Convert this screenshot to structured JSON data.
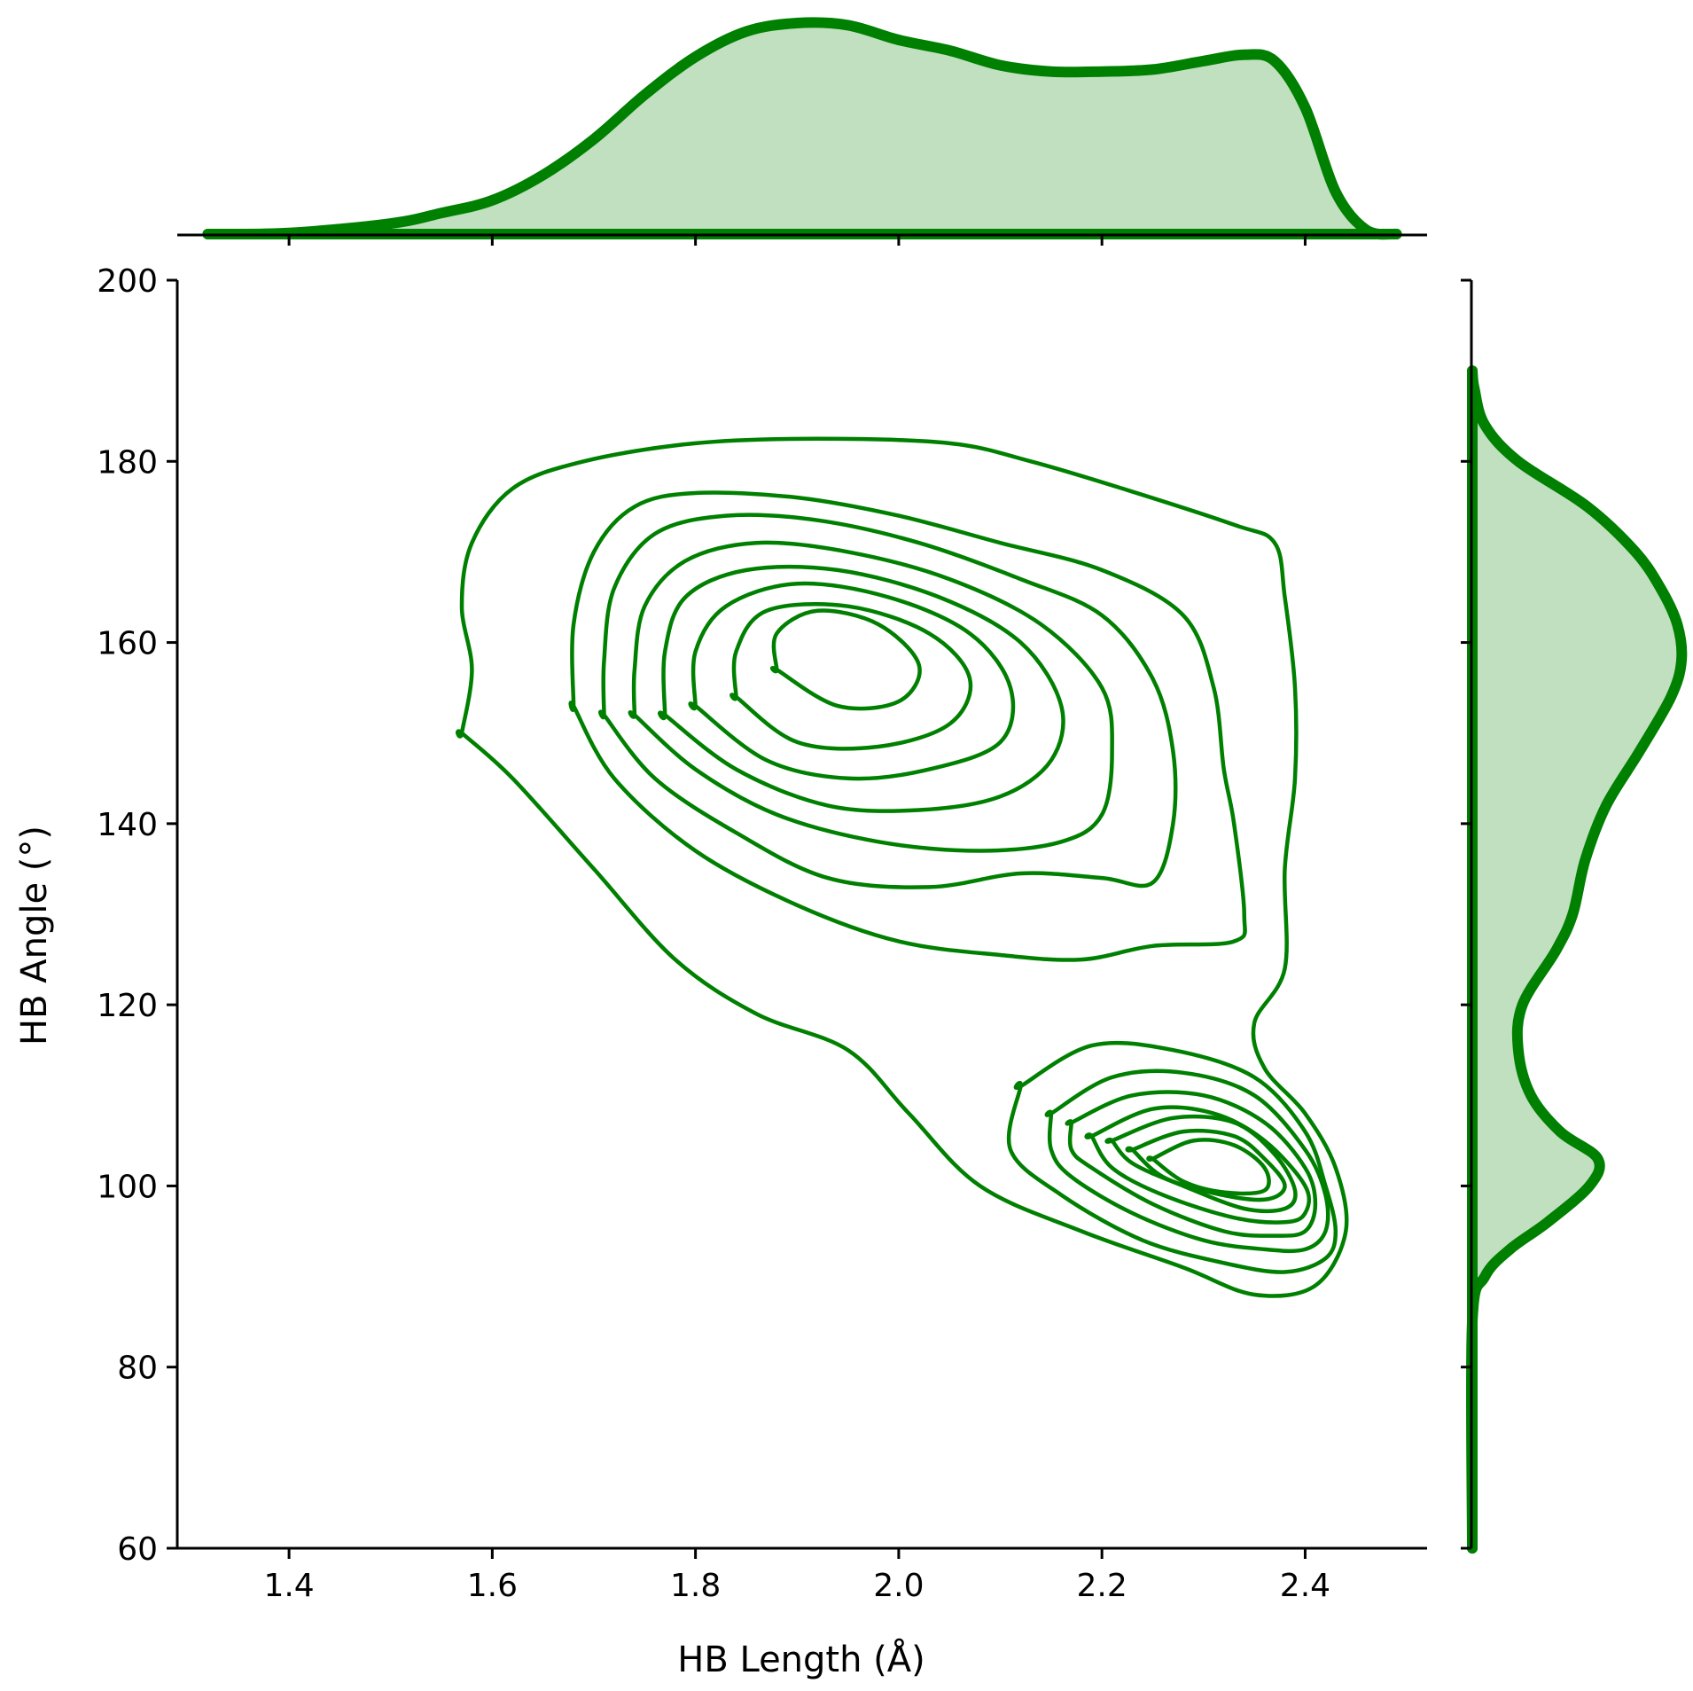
{
  "chart_data": {
    "type": "kde-joint",
    "color": "#008000",
    "fill_color": "#c0e0c0",
    "xlabel": "HB Length (Å)",
    "ylabel": "HB Angle (°)",
    "xlim": [
      1.29,
      2.52
    ],
    "ylim": [
      60,
      200
    ],
    "xticks": [
      "1.4",
      "1.6",
      "1.8",
      "2.0",
      "2.2",
      "2.4"
    ],
    "yticks": [
      "60",
      "80",
      "100",
      "120",
      "140",
      "160",
      "180",
      "200"
    ],
    "grid": false,
    "contours": [
      [
        [
          1.57,
          150
        ],
        [
          1.62,
          145
        ],
        [
          1.7,
          135
        ],
        [
          1.78,
          125
        ],
        [
          1.86,
          119
        ],
        [
          1.95,
          115
        ],
        [
          2.01,
          108
        ],
        [
          2.08,
          100
        ],
        [
          2.18,
          95
        ],
        [
          2.28,
          91
        ],
        [
          2.35,
          88
        ],
        [
          2.41,
          89
        ],
        [
          2.44,
          95
        ],
        [
          2.43,
          102
        ],
        [
          2.4,
          108
        ],
        [
          2.36,
          113
        ],
        [
          2.35,
          118
        ],
        [
          2.38,
          124
        ],
        [
          2.38,
          135
        ],
        [
          2.39,
          145
        ],
        [
          2.39,
          155
        ],
        [
          2.38,
          165
        ],
        [
          2.37,
          171
        ],
        [
          2.33,
          173
        ],
        [
          2.22,
          177
        ],
        [
          2.13,
          180
        ],
        [
          2.05,
          182
        ],
        [
          1.92,
          182.5
        ],
        [
          1.8,
          182
        ],
        [
          1.69,
          180
        ],
        [
          1.62,
          177
        ],
        [
          1.58,
          171
        ],
        [
          1.57,
          164
        ],
        [
          1.58,
          157
        ],
        [
          1.57,
          150
        ]
      ],
      [
        [
          2.12,
          111
        ],
        [
          2.19,
          115.5
        ],
        [
          2.27,
          115
        ],
        [
          2.35,
          112
        ],
        [
          2.4,
          106
        ],
        [
          2.42,
          100
        ],
        [
          2.43,
          95
        ],
        [
          2.42,
          92
        ],
        [
          2.38,
          90.5
        ],
        [
          2.32,
          91.5
        ],
        [
          2.24,
          94
        ],
        [
          2.16,
          99
        ],
        [
          2.11,
          104
        ],
        [
          2.12,
          111
        ]
      ],
      [
        [
          2.15,
          108
        ],
        [
          2.21,
          112
        ],
        [
          2.28,
          112.5
        ],
        [
          2.35,
          110
        ],
        [
          2.4,
          104
        ],
        [
          2.42,
          99
        ],
        [
          2.42,
          95
        ],
        [
          2.4,
          93
        ],
        [
          2.36,
          93
        ],
        [
          2.3,
          94
        ],
        [
          2.23,
          97
        ],
        [
          2.17,
          101
        ],
        [
          2.15,
          104
        ],
        [
          2.15,
          108
        ]
      ],
      [
        [
          2.17,
          107
        ],
        [
          2.23,
          110
        ],
        [
          2.3,
          110
        ],
        [
          2.36,
          107
        ],
        [
          2.4,
          102
        ],
        [
          2.41,
          98
        ],
        [
          2.4,
          95
        ],
        [
          2.37,
          94.5
        ],
        [
          2.32,
          95
        ],
        [
          2.25,
          98
        ],
        [
          2.19,
          102
        ],
        [
          2.17,
          104
        ],
        [
          2.17,
          107
        ]
      ],
      [
        [
          2.19,
          105.5
        ],
        [
          2.25,
          108.5
        ],
        [
          2.31,
          108
        ],
        [
          2.36,
          105
        ],
        [
          2.4,
          100
        ],
        [
          2.4,
          97
        ],
        [
          2.38,
          96
        ],
        [
          2.33,
          96.5
        ],
        [
          2.26,
          99
        ],
        [
          2.21,
          102
        ],
        [
          2.19,
          105.5
        ]
      ],
      [
        [
          2.21,
          105
        ],
        [
          2.27,
          107.5
        ],
        [
          2.33,
          107
        ],
        [
          2.37,
          103.5
        ],
        [
          2.39,
          99.5
        ],
        [
          2.38,
          97.5
        ],
        [
          2.34,
          97.5
        ],
        [
          2.28,
          100
        ],
        [
          2.23,
          102.5
        ],
        [
          2.21,
          105
        ]
      ],
      [
        [
          2.23,
          104
        ],
        [
          2.28,
          106
        ],
        [
          2.33,
          105.5
        ],
        [
          2.36,
          103
        ],
        [
          2.38,
          100
        ],
        [
          2.36,
          98.5
        ],
        [
          2.31,
          99.2
        ],
        [
          2.26,
          101
        ],
        [
          2.23,
          104
        ]
      ],
      [
        [
          2.25,
          103
        ],
        [
          2.29,
          105
        ],
        [
          2.33,
          104.5
        ],
        [
          2.36,
          102
        ],
        [
          2.36,
          99.5
        ],
        [
          2.32,
          99.3
        ],
        [
          2.28,
          100.5
        ],
        [
          2.25,
          103
        ]
      ],
      [
        [
          1.68,
          153
        ],
        [
          1.72,
          145
        ],
        [
          1.8,
          137
        ],
        [
          1.9,
          131
        ],
        [
          2.0,
          127
        ],
        [
          2.1,
          125.5
        ],
        [
          2.18,
          125
        ],
        [
          2.25,
          126.5
        ],
        [
          2.33,
          127
        ],
        [
          2.34,
          130
        ],
        [
          2.33,
          140
        ],
        [
          2.32,
          146
        ],
        [
          2.31,
          155
        ],
        [
          2.28,
          163
        ],
        [
          2.2,
          168
        ],
        [
          2.1,
          171
        ],
        [
          2.0,
          174
        ],
        [
          1.9,
          176
        ],
        [
          1.8,
          176.5
        ],
        [
          1.74,
          175
        ],
        [
          1.7,
          170
        ],
        [
          1.68,
          162
        ],
        [
          1.68,
          153
        ]
      ],
      [
        [
          1.71,
          152
        ],
        [
          1.76,
          145
        ],
        [
          1.84,
          139
        ],
        [
          1.93,
          134
        ],
        [
          2.03,
          133
        ],
        [
          2.12,
          134.5
        ],
        [
          2.2,
          134
        ],
        [
          2.25,
          133.5
        ],
        [
          2.27,
          140
        ],
        [
          2.27,
          148
        ],
        [
          2.25,
          156
        ],
        [
          2.2,
          163
        ],
        [
          2.12,
          167
        ],
        [
          2.02,
          171
        ],
        [
          1.92,
          173.5
        ],
        [
          1.83,
          174
        ],
        [
          1.76,
          172
        ],
        [
          1.72,
          166
        ],
        [
          1.71,
          158
        ],
        [
          1.71,
          152
        ]
      ],
      [
        [
          1.74,
          152
        ],
        [
          1.8,
          146
        ],
        [
          1.88,
          141
        ],
        [
          1.98,
          138
        ],
        [
          2.08,
          137
        ],
        [
          2.16,
          138
        ],
        [
          2.2,
          141
        ],
        [
          2.21,
          148
        ],
        [
          2.2,
          155
        ],
        [
          2.14,
          162
        ],
        [
          2.05,
          167
        ],
        [
          1.95,
          170
        ],
        [
          1.86,
          171
        ],
        [
          1.79,
          169
        ],
        [
          1.75,
          164
        ],
        [
          1.74,
          157
        ],
        [
          1.74,
          152
        ]
      ],
      [
        [
          1.77,
          152
        ],
        [
          1.84,
          146
        ],
        [
          1.93,
          142
        ],
        [
          2.02,
          141.5
        ],
        [
          2.1,
          143
        ],
        [
          2.15,
          147
        ],
        [
          2.16,
          153
        ],
        [
          2.12,
          160
        ],
        [
          2.04,
          165
        ],
        [
          1.94,
          168
        ],
        [
          1.85,
          168
        ],
        [
          1.79,
          165
        ],
        [
          1.77,
          159
        ],
        [
          1.77,
          152
        ]
      ],
      [
        [
          1.8,
          153
        ],
        [
          1.87,
          147
        ],
        [
          1.95,
          145
        ],
        [
          2.03,
          146
        ],
        [
          2.1,
          149
        ],
        [
          2.11,
          155
        ],
        [
          2.07,
          161
        ],
        [
          1.99,
          165
        ],
        [
          1.9,
          166.5
        ],
        [
          1.83,
          164
        ],
        [
          1.8,
          159
        ],
        [
          1.8,
          153
        ]
      ],
      [
        [
          1.84,
          154
        ],
        [
          1.9,
          149
        ],
        [
          1.98,
          148.5
        ],
        [
          2.05,
          151
        ],
        [
          2.07,
          156
        ],
        [
          2.03,
          161
        ],
        [
          1.95,
          164
        ],
        [
          1.87,
          163.5
        ],
        [
          1.84,
          159
        ],
        [
          1.84,
          154
        ]
      ],
      [
        [
          1.88,
          157
        ],
        [
          1.94,
          153
        ],
        [
          2.0,
          153.5
        ],
        [
          2.02,
          157.5
        ],
        [
          1.98,
          162
        ],
        [
          1.92,
          163.5
        ],
        [
          1.88,
          161
        ],
        [
          1.88,
          157
        ]
      ]
    ],
    "marginal_x": {
      "x": [
        1.32,
        1.4,
        1.5,
        1.55,
        1.6,
        1.65,
        1.7,
        1.75,
        1.8,
        1.85,
        1.9,
        1.95,
        2.0,
        2.05,
        2.1,
        2.15,
        2.2,
        2.25,
        2.3,
        2.34,
        2.37,
        2.4,
        2.43,
        2.46,
        2.49
      ],
      "density": [
        0.0,
        0.005,
        0.05,
        0.1,
        0.16,
        0.28,
        0.45,
        0.66,
        0.84,
        0.96,
        1.0,
        0.99,
        0.92,
        0.87,
        0.8,
        0.77,
        0.77,
        0.78,
        0.82,
        0.85,
        0.82,
        0.6,
        0.2,
        0.02,
        0.0
      ]
    },
    "marginal_y": {
      "y": [
        60,
        85,
        90,
        93,
        96,
        100,
        103,
        106,
        110,
        115,
        120,
        126,
        130,
        136,
        142,
        148,
        154,
        158,
        162,
        166,
        170,
        175,
        180,
        184,
        188,
        190
      ],
      "density": [
        0.0,
        0.0,
        0.06,
        0.18,
        0.36,
        0.56,
        0.6,
        0.42,
        0.28,
        0.22,
        0.24,
        0.4,
        0.48,
        0.54,
        0.64,
        0.8,
        0.95,
        1.0,
        0.98,
        0.9,
        0.78,
        0.55,
        0.22,
        0.06,
        0.01,
        0.0
      ]
    }
  }
}
